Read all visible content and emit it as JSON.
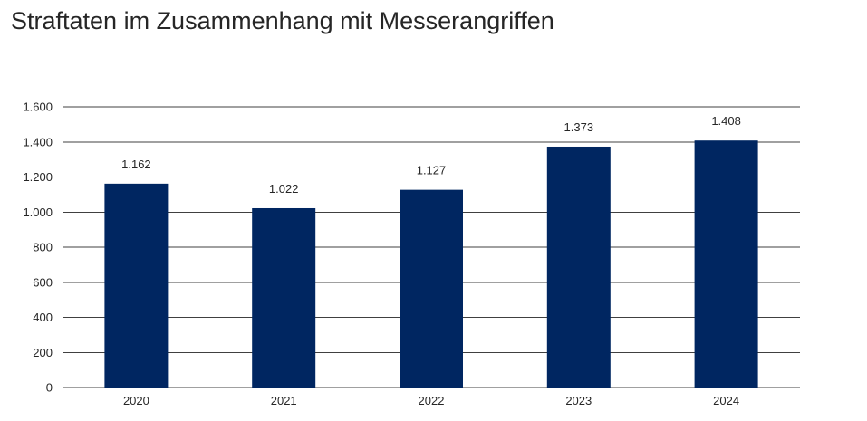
{
  "chart_data": {
    "type": "bar",
    "title": "Straftaten im Zusammenhang mit Messerangriffen",
    "categories": [
      "2020",
      "2021",
      "2022",
      "2023",
      "2024"
    ],
    "values": [
      1162,
      1022,
      1127,
      1373,
      1408
    ],
    "data_labels": [
      "1.162",
      "1.022",
      "1.127",
      "1.373",
      "1.408"
    ],
    "yticks": [
      0,
      200,
      400,
      600,
      800,
      1000,
      1200,
      1400,
      1600
    ],
    "ytick_labels": [
      "0",
      "200",
      "400",
      "600",
      "800",
      "1.000",
      "1.200",
      "1.400",
      "1.600"
    ],
    "ylim": [
      0,
      1600
    ],
    "xlabel": "",
    "ylabel": "",
    "grid": true,
    "legend": "none",
    "bar_color": "#002661",
    "grid_color": "#404040"
  }
}
